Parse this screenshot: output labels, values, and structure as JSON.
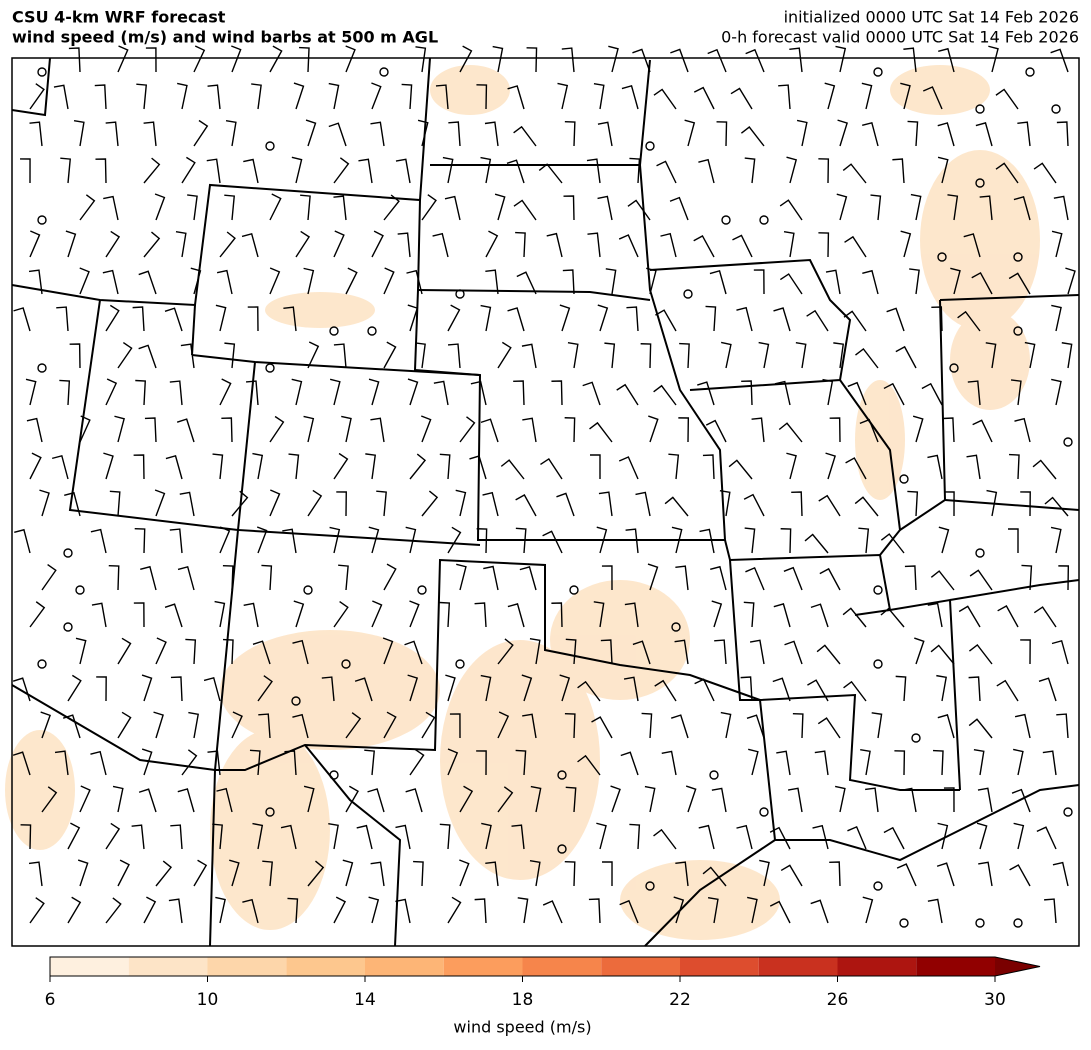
{
  "header": {
    "title": [
      "CSU 4-km WRF forecast",
      "wind speed (m/s) and wind barbs at 500 m AGL"
    ],
    "info": [
      "initialized 0000 UTC Sat 14 Feb 2026",
      "0-h forecast valid 0000 UTC Sat 14 Feb 2026"
    ]
  },
  "colorbar": {
    "levels": [
      6,
      8,
      10,
      12,
      14,
      16,
      18,
      20,
      22,
      24,
      26,
      28,
      30
    ],
    "colors": [
      "#fef0df",
      "#fde4c7",
      "#fdd6aa",
      "#fdc78e",
      "#fdb576",
      "#fc9d5d",
      "#f6854b",
      "#ec6b3c",
      "#dd4d2e",
      "#c9311f",
      "#ad1510",
      "#910000"
    ],
    "over_color": "#7a0000",
    "ticks": [
      6,
      10,
      14,
      18,
      22,
      26,
      30
    ],
    "label": "wind speed (m/s)"
  }
}
